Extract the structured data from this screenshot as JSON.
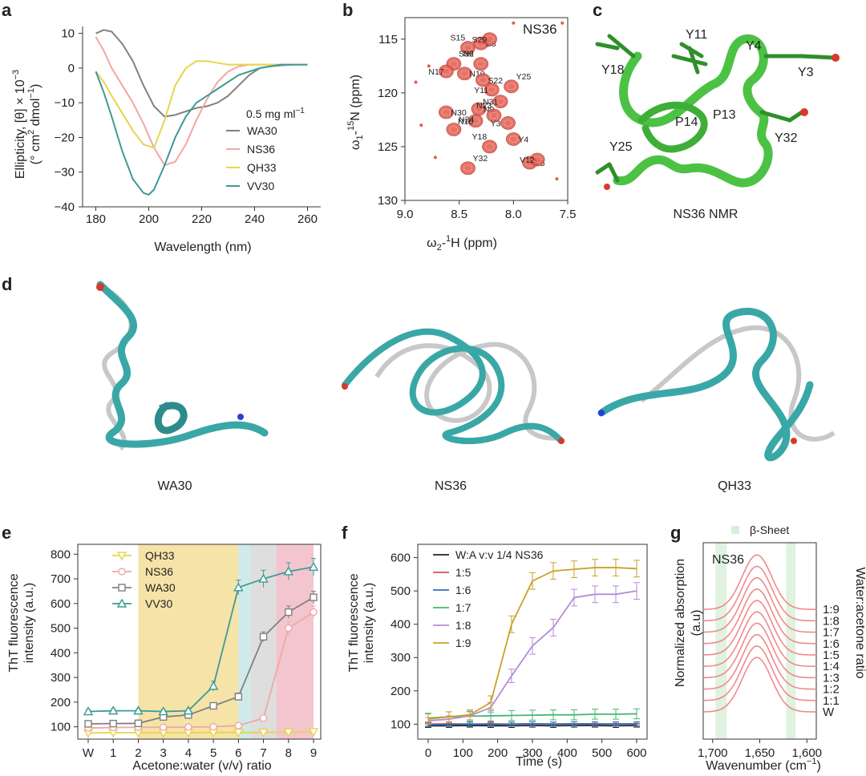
{
  "panel_labels": [
    "a",
    "b",
    "c",
    "d",
    "e",
    "f",
    "g"
  ],
  "colors": {
    "wa30": "#808080",
    "ns36": "#f4a6a6",
    "qh33": "#e8d44d",
    "vv30": "#3d9a96",
    "red": "#d9534f",
    "bar_yellow": "#f6e3a8",
    "bar_teal": "#cfeae9",
    "bar_gray": "#dedede",
    "bar_pink": "#f3c6cf",
    "protein": "#3aa7a7",
    "nmr_green": "#4cc244"
  },
  "chart_data": [
    {
      "id": "a",
      "type": "line",
      "xlabel": "Wavelength (nm)",
      "ylabel_line1": "Ellipticity, [θ] × 10",
      "ylabel_sup1": "−3",
      "ylabel_line2": "(° cm",
      "ylabel_sup2": "2",
      "ylabel_line2b": " dmol",
      "ylabel_sup3": "−1",
      "ylabel_line2c": ")",
      "xlim": [
        175,
        265
      ],
      "ylim": [
        -40,
        12
      ],
      "xticks": [
        "180",
        "200",
        "220",
        "240",
        "260"
      ],
      "yticks": [
        "10",
        "0",
        "−10",
        "−20",
        "−30",
        "−40"
      ],
      "xtick_values": [
        180,
        200,
        220,
        240,
        260
      ],
      "ytick_values": [
        10,
        0,
        -10,
        -20,
        -30,
        -40
      ],
      "legend_title": "0.5 mg ml",
      "legend_title_sup": "−1",
      "series": [
        {
          "name": "WA30",
          "color": "#808080",
          "x": [
            180,
            183,
            186,
            190,
            194,
            198,
            202,
            206,
            210,
            214,
            218,
            222,
            226,
            230,
            234,
            238,
            242,
            246,
            250,
            255,
            260
          ],
          "y": [
            10,
            11,
            10.5,
            7,
            2,
            -5,
            -11,
            -14,
            -13.5,
            -12.5,
            -11.5,
            -11,
            -10,
            -8,
            -5,
            -2,
            0,
            0.5,
            0.8,
            1,
            1
          ]
        },
        {
          "name": "NS36",
          "color": "#f4a6a6",
          "x": [
            180,
            183,
            186,
            190,
            194,
            198,
            202,
            206,
            210,
            214,
            218,
            222,
            226,
            230,
            234,
            238,
            242,
            246,
            250,
            255,
            260
          ],
          "y": [
            9,
            5,
            0,
            -5,
            -10,
            -16,
            -23,
            -28,
            -27,
            -22,
            -15,
            -9,
            -4,
            -1,
            0.5,
            1,
            1,
            1,
            1,
            1,
            1
          ]
        },
        {
          "name": "QH33",
          "color": "#e8d44d",
          "x": [
            180,
            183,
            186,
            190,
            194,
            198,
            202,
            206,
            210,
            214,
            218,
            222,
            226,
            230,
            234,
            238,
            242,
            246,
            250,
            255,
            260
          ],
          "y": [
            -1,
            -4,
            -8,
            -13,
            -18,
            -22,
            -23,
            -15,
            -5,
            0,
            2,
            2,
            1.5,
            1,
            1,
            1,
            1,
            1,
            1,
            1,
            1
          ]
        },
        {
          "name": "VV30",
          "color": "#3d9a96",
          "x": [
            180,
            183,
            186,
            190,
            194,
            198,
            200,
            202,
            206,
            210,
            214,
            218,
            222,
            226,
            230,
            234,
            238,
            242,
            246,
            250,
            255,
            260
          ],
          "y": [
            -1,
            -7,
            -14,
            -24,
            -32,
            -36,
            -36.5,
            -35,
            -28,
            -20,
            -14,
            -10,
            -8,
            -6,
            -4,
            -2,
            -1,
            0,
            0.5,
            1,
            1,
            1
          ]
        }
      ]
    },
    {
      "id": "b",
      "type": "scatter",
      "title": "NS36",
      "xlabel": "ω",
      "xlabel_sub": "2",
      "xlabel_rest": "-",
      "xlabel_sup": "1",
      "xlabel_end": "H (ppm)",
      "ylabel": "ω",
      "ylabel_sub": "1",
      "ylabel_rest": "-",
      "ylabel_sup": "15",
      "ylabel_end": "N (ppm)",
      "xlim": [
        9.0,
        7.5
      ],
      "ylim": [
        113,
        130
      ],
      "xticks": [
        "9.0",
        "8.5",
        "8.0",
        "7.5"
      ],
      "yticks": [
        "115",
        "120",
        "125",
        "130"
      ],
      "xtick_values": [
        9.0,
        8.5,
        8.0,
        7.5
      ],
      "ytick_values": [
        115,
        120,
        125,
        130
      ],
      "peaks": [
        {
          "label": "S15",
          "x": 8.42,
          "y": 115.8
        },
        {
          "label": "S8",
          "x": 8.3,
          "y": 115.4
        },
        {
          "label": "S29",
          "x": 8.22,
          "y": 115.0
        },
        {
          "label": "S36",
          "x": 8.55,
          "y": 117.3
        },
        {
          "label": "N17",
          "x": 8.62,
          "y": 118.0
        },
        {
          "label": "N10",
          "x": 8.45,
          "y": 118.2
        },
        {
          "label": "N2",
          "x": 8.3,
          "y": 117.3
        },
        {
          "label": "S22",
          "x": 8.28,
          "y": 118.8
        },
        {
          "label": "Y11",
          "x": 8.2,
          "y": 119.7
        },
        {
          "label": "Y25",
          "x": 8.02,
          "y": 119.4
        },
        {
          "label": "N31",
          "x": 8.12,
          "y": 120.8
        },
        {
          "label": "N9",
          "x": 8.32,
          "y": 121.5
        },
        {
          "label": "N23",
          "x": 8.18,
          "y": 122.1
        },
        {
          "label": "N30",
          "x": 8.62,
          "y": 121.8
        },
        {
          "label": "N16",
          "x": 8.35,
          "y": 122.6
        },
        {
          "label": "N24",
          "x": 8.55,
          "y": 123.4
        },
        {
          "label": "Y3",
          "x": 8.05,
          "y": 122.8
        },
        {
          "label": "Y4",
          "x": 8.0,
          "y": 124.3
        },
        {
          "label": "Y18",
          "x": 8.22,
          "y": 125.0
        },
        {
          "label": "V5",
          "x": 7.85,
          "y": 126.5
        },
        {
          "label": "V12",
          "x": 7.78,
          "y": 126.2
        },
        {
          "label": "Y32",
          "x": 8.42,
          "y": 127.0
        }
      ]
    },
    {
      "id": "e",
      "type": "line",
      "xlabel": "Acetone:water (v/v) ratio",
      "ylabel_line1": "ThT fluorescence",
      "ylabel_line2": "intensity (a.u.)",
      "categories": [
        "W",
        "1",
        "2",
        "3",
        "4",
        "5",
        "6",
        "7",
        "8",
        "9"
      ],
      "ylim": [
        50,
        840
      ],
      "yticks": [
        "800",
        "700",
        "600",
        "500",
        "400",
        "300",
        "200",
        "100"
      ],
      "ytick_values": [
        800,
        700,
        600,
        500,
        400,
        300,
        200,
        100
      ],
      "bands": [
        {
          "from": 2,
          "to": 6,
          "color": "#f6e3a8"
        },
        {
          "from": 6,
          "to": 6.5,
          "color": "#cfeae9"
        },
        {
          "from": 6.5,
          "to": 7.5,
          "color": "#dedede"
        },
        {
          "from": 7.5,
          "to": 9,
          "color": "#f3c6cf"
        }
      ],
      "series": [
        {
          "name": "QH33",
          "color": "#e8d44d",
          "marker": "triangle-down",
          "values": [
            75,
            76,
            76,
            76,
            76,
            77,
            77,
            77,
            78,
            80
          ],
          "err": [
            5,
            5,
            5,
            5,
            5,
            5,
            5,
            5,
            5,
            5
          ]
        },
        {
          "name": "NS36",
          "color": "#f4a6a6",
          "marker": "circle",
          "values": [
            95,
            97,
            98,
            98,
            99,
            100,
            105,
            135,
            500,
            565
          ],
          "err": [
            6,
            6,
            6,
            6,
            6,
            6,
            8,
            10,
            25,
            25
          ]
        },
        {
          "name": "WA30",
          "color": "#808080",
          "marker": "square",
          "values": [
            112,
            113,
            114,
            140,
            148,
            185,
            222,
            465,
            565,
            625
          ],
          "err": [
            8,
            8,
            8,
            8,
            8,
            12,
            15,
            20,
            25,
            25
          ]
        },
        {
          "name": "VV30",
          "color": "#3d9a96",
          "marker": "triangle-up",
          "values": [
            162,
            165,
            165,
            162,
            165,
            265,
            665,
            700,
            730,
            748
          ],
          "err": [
            8,
            8,
            8,
            8,
            8,
            20,
            30,
            35,
            35,
            35
          ]
        }
      ]
    },
    {
      "id": "f",
      "type": "line",
      "xlabel": "Time (s)",
      "ylabel_line1": "ThT fluorescence",
      "ylabel_line2": "intensity (a.u.)",
      "xlim": [
        -30,
        630
      ],
      "ylim": [
        55,
        640
      ],
      "xticks": [
        "0",
        "100",
        "200",
        "300",
        "400",
        "500",
        "600"
      ],
      "xtick_values": [
        0,
        100,
        200,
        300,
        400,
        500,
        600
      ],
      "yticks": [
        "600",
        "500",
        "400",
        "300",
        "200",
        "100"
      ],
      "ytick_values": [
        600,
        500,
        400,
        300,
        200,
        100
      ],
      "x": [
        0,
        60,
        120,
        180,
        240,
        300,
        360,
        420,
        480,
        540,
        600
      ],
      "series": [
        {
          "name": "W:A v:v 1/4 NS36",
          "color": "#222222",
          "values": [
            95,
            95,
            96,
            95,
            95,
            96,
            95,
            96,
            96,
            95,
            96
          ],
          "err": [
            5,
            5,
            5,
            5,
            5,
            5,
            5,
            5,
            5,
            5,
            5
          ]
        },
        {
          "name": "1:5",
          "color": "#d9534f",
          "values": [
            100,
            101,
            100,
            101,
            100,
            101,
            100,
            101,
            100,
            101,
            100
          ],
          "err": [
            6,
            6,
            6,
            6,
            6,
            6,
            6,
            6,
            6,
            6,
            6
          ]
        },
        {
          "name": "1:6",
          "color": "#2c6fbb",
          "values": [
            98,
            99,
            100,
            99,
            100,
            101,
            100,
            101,
            101,
            100,
            101
          ],
          "err": [
            6,
            6,
            6,
            6,
            6,
            6,
            6,
            6,
            6,
            6,
            6
          ]
        },
        {
          "name": "1:7",
          "color": "#43b86e",
          "values": [
            118,
            122,
            124,
            125,
            126,
            127,
            128,
            128,
            130,
            130,
            131
          ],
          "err": [
            15,
            15,
            15,
            15,
            15,
            15,
            15,
            15,
            15,
            15,
            15
          ]
        },
        {
          "name": "1:8",
          "color": "#b48bd6",
          "values": [
            110,
            115,
            125,
            150,
            245,
            335,
            390,
            480,
            490,
            490,
            500
          ],
          "err": [
            10,
            10,
            12,
            15,
            20,
            25,
            25,
            25,
            25,
            25,
            25
          ]
        },
        {
          "name": "1:9",
          "color": "#c9a227",
          "values": [
            115,
            122,
            128,
            165,
            400,
            530,
            560,
            565,
            570,
            570,
            567
          ],
          "err": [
            15,
            15,
            15,
            20,
            25,
            25,
            25,
            25,
            25,
            25,
            25
          ]
        }
      ]
    },
    {
      "id": "g",
      "type": "line",
      "title": "NS36",
      "band_label": "β-Sheet",
      "xlabel": "Wavenumber (cm",
      "xlabel_sup": "−1",
      "xlabel_end": ")",
      "ylabel_line1": "Normalized absorption",
      "ylabel_line2": "(a.u)",
      "right_label": "Water:acetone ratio",
      "xlim": [
        1710,
        1590
      ],
      "xticks": [
        "1,700",
        "1,650",
        "1,600"
      ],
      "xtick_values": [
        1700,
        1650,
        1600
      ],
      "bands": [
        [
          1685,
          1697
        ],
        [
          1612,
          1622
        ]
      ],
      "traces": [
        "W",
        "1:1",
        "1:2",
        "1:3",
        "1:4",
        "1:5",
        "1:6",
        "1:7",
        "1:8",
        "1:9"
      ],
      "peak_center": 1653
    }
  ],
  "structures": {
    "c": {
      "title": "NS36 NMR",
      "residues": [
        "Y11",
        "Y4",
        "Y18",
        "Y3",
        "P14",
        "P13",
        "Y25",
        "Y32"
      ]
    },
    "d": {
      "labels": [
        "WA30",
        "NS36",
        "QH33"
      ]
    }
  }
}
